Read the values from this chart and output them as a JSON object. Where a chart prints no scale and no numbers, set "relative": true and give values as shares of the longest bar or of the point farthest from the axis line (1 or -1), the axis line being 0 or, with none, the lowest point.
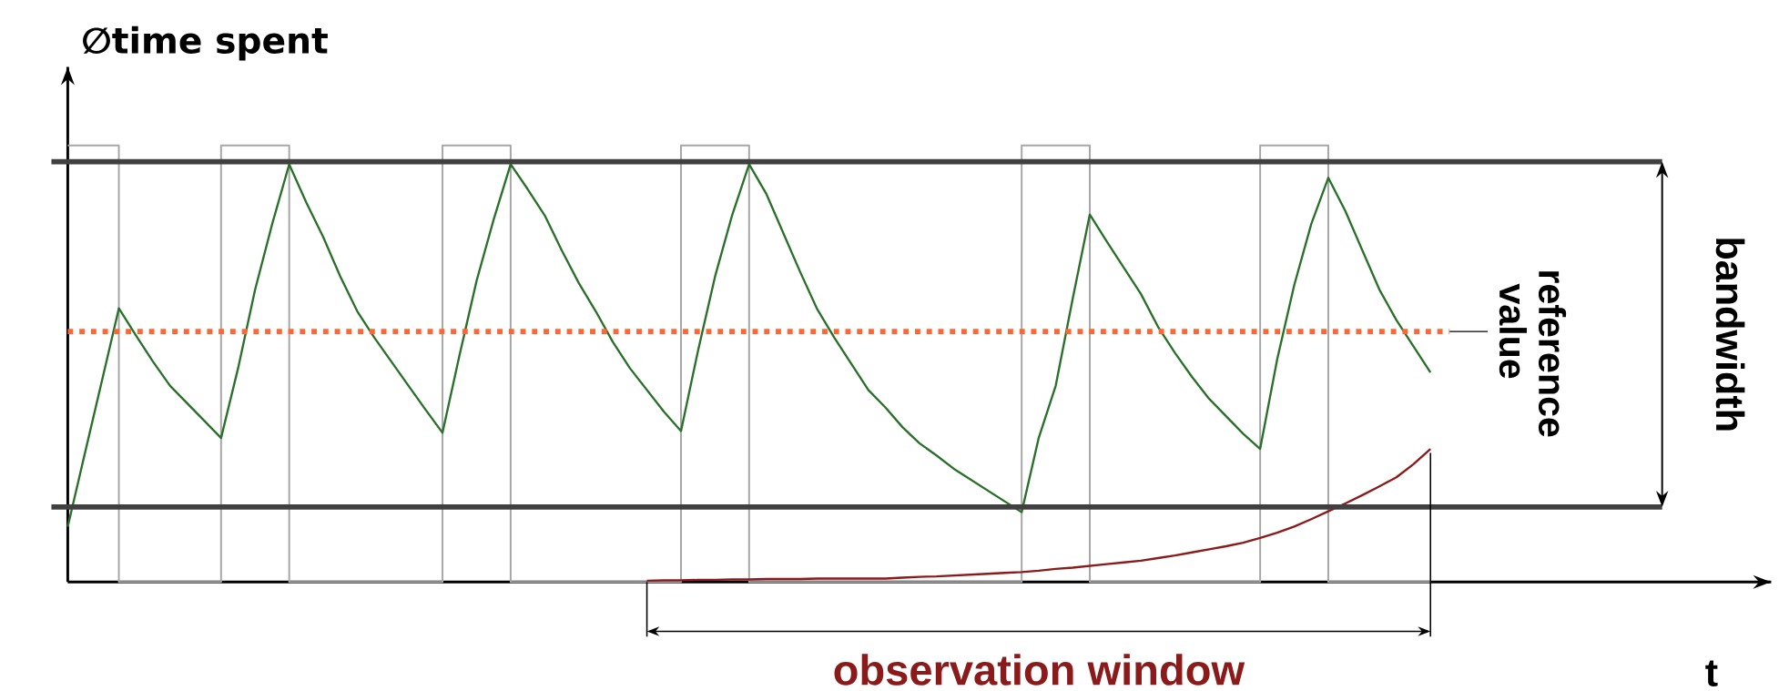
{
  "chart_data": {
    "type": "line",
    "relative": true,
    "ylabel": "∅time spent",
    "categories": [
      null,
      null,
      null,
      null,
      null,
      null,
      null,
      null,
      null,
      null,
      null,
      null,
      null,
      null,
      null,
      null,
      null,
      null,
      null,
      null,
      null,
      null,
      null,
      null,
      null,
      null,
      null,
      null,
      null,
      null,
      null,
      null,
      null,
      null,
      null,
      null,
      null,
      null,
      null,
      null,
      null,
      null,
      null,
      null,
      null,
      null,
      null,
      null,
      null,
      null,
      null,
      null,
      null,
      null,
      null,
      null,
      null,
      null,
      null,
      null,
      null,
      null,
      null,
      null,
      null,
      null,
      null,
      null,
      null,
      null,
      null,
      null,
      null,
      null,
      null,
      null,
      null,
      null,
      null,
      null,
      null
    ],
    "series": [
      {
        "type": "step",
        "color": "#a6a6a6",
        "values": [
          1,
          1,
          1,
          0,
          0,
          0,
          0,
          0,
          0,
          1,
          1,
          1,
          1,
          0,
          0,
          0,
          0,
          0,
          0,
          0,
          0,
          0,
          1,
          1,
          1,
          1,
          0,
          0,
          0,
          0,
          0,
          0,
          0,
          0,
          0,
          0,
          1,
          1,
          1,
          1,
          0,
          0,
          0,
          0,
          0,
          0,
          0,
          0,
          0,
          0,
          0,
          0,
          0,
          0,
          0,
          0,
          1,
          1,
          1,
          1,
          0,
          0,
          0,
          0,
          0,
          0,
          0,
          0,
          0,
          0,
          1,
          1,
          1,
          1,
          0,
          0,
          0,
          0,
          0,
          0,
          0
        ]
      },
      {
        "color": "#2a702a",
        "values": [
          0.127,
          0.294,
          0.46,
          0.627,
          0.565,
          0.505,
          0.45,
          0.41,
          0.37,
          0.33,
          0.49,
          0.67,
          0.82,
          0.957,
          0.87,
          0.79,
          0.7,
          0.62,
          0.56,
          0.505,
          0.45,
          0.395,
          0.342,
          0.52,
          0.69,
          0.83,
          0.957,
          0.9,
          0.84,
          0.76,
          0.685,
          0.62,
          0.55,
          0.49,
          0.44,
          0.39,
          0.346,
          0.53,
          0.7,
          0.84,
          0.957,
          0.89,
          0.8,
          0.71,
          0.625,
          0.56,
          0.5,
          0.44,
          0.4,
          0.355,
          0.318,
          0.29,
          0.26,
          0.235,
          0.21,
          0.185,
          0.16,
          0.33,
          0.45,
          0.65,
          0.842,
          0.78,
          0.72,
          0.66,
          0.585,
          0.525,
          0.47,
          0.42,
          0.38,
          0.34,
          0.305,
          0.51,
          0.68,
          0.82,
          0.926,
          0.85,
          0.76,
          0.67,
          0.6,
          0.54,
          0.48
        ]
      },
      {
        "color": "#8b1a1a",
        "values": [
          null,
          null,
          null,
          null,
          null,
          null,
          null,
          null,
          null,
          null,
          null,
          null,
          null,
          null,
          null,
          null,
          null,
          null,
          null,
          null,
          null,
          null,
          null,
          null,
          null,
          null,
          null,
          null,
          null,
          null,
          null,
          null,
          null,
          null,
          0.003,
          0.004,
          0.004,
          0.005,
          0.005,
          0.006,
          0.006,
          0.007,
          0.007,
          0.007,
          0.008,
          0.008,
          0.008,
          0.008,
          0.008,
          0.01,
          0.012,
          0.013,
          0.015,
          0.017,
          0.019,
          0.021,
          0.023,
          0.026,
          0.03,
          0.033,
          0.037,
          0.041,
          0.045,
          0.049,
          0.055,
          0.061,
          0.068,
          0.075,
          0.082,
          0.09,
          0.101,
          0.113,
          0.127,
          0.144,
          0.162,
          0.18,
          0.199,
          0.219,
          0.24,
          0.27,
          0.305
        ]
      }
    ],
    "ref_lines": [
      {
        "axis": "y",
        "value": 0.963,
        "color": "#404040"
      },
      {
        "axis": "y",
        "value": 0.172,
        "color": "#404040"
      },
      {
        "axis": "y",
        "value": 0.574,
        "color": "#ff6633",
        "line_style": "dotted",
        "label": "reference value"
      }
    ],
    "annotations": [
      "bandwidth",
      "observation window",
      "t"
    ]
  }
}
